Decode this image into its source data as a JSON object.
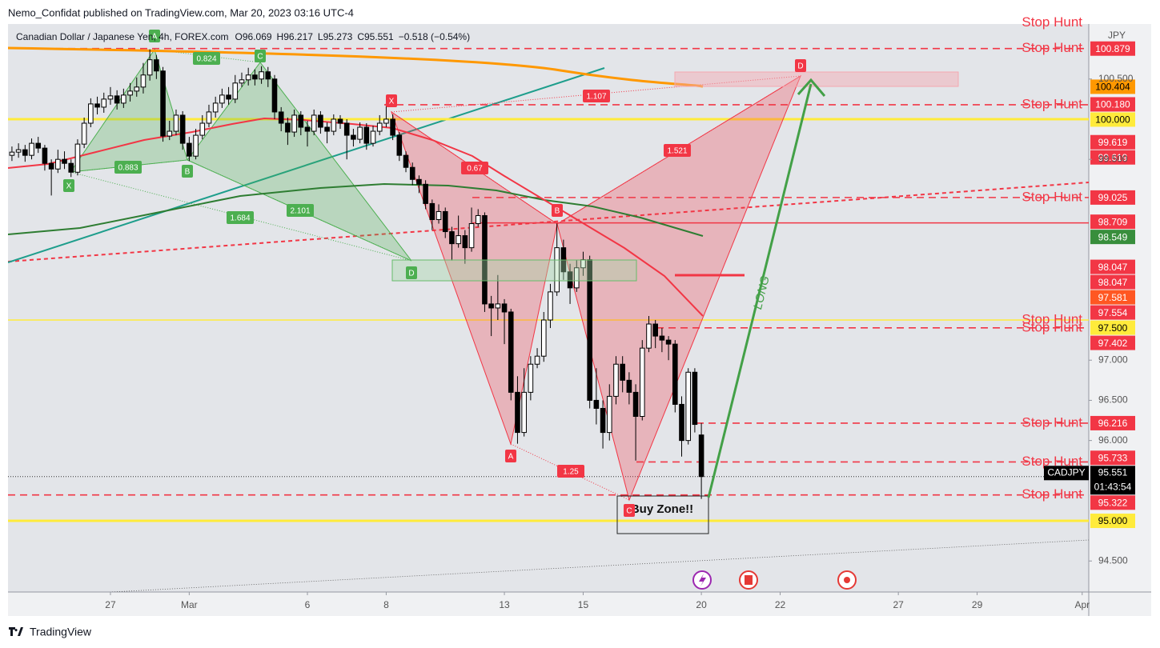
{
  "header": {
    "author_line": "Nemo_Confidat published on TradingView.com, Mar 20, 2023 03:16 UTC-4"
  },
  "footer": {
    "brand": "TradingView"
  },
  "chart_data": {
    "type": "candlestick",
    "title": "Canadian Dollar / Japanese Yen, 4h, FOREX.com",
    "ohlc_labels": [
      "O",
      "H",
      "L",
      "C"
    ],
    "change": "−0.518 (−0.54%)",
    "currency": "JPY",
    "symbol": "CADJPY",
    "countdown": "01:43:54",
    "up_color": "#ffffff",
    "down_color": "#000000",
    "wick_color": "#000000",
    "categories": [
      null,
      null,
      null,
      null,
      null,
      null,
      null,
      null,
      null,
      null,
      null,
      null,
      null,
      null,
      null,
      null,
      null,
      null,
      null,
      null,
      null,
      null,
      null,
      null,
      null,
      null,
      null,
      null,
      null,
      null,
      null,
      null,
      null,
      null,
      null,
      null,
      null,
      null,
      null,
      null,
      null,
      null,
      null,
      null,
      null,
      null,
      null,
      null,
      null,
      null,
      null,
      null,
      null,
      null,
      null,
      null,
      null,
      null,
      null,
      null,
      null,
      null,
      null,
      null,
      null,
      null,
      null,
      null,
      null,
      null,
      null,
      null,
      null,
      null,
      null,
      null,
      null,
      null,
      null,
      null,
      null,
      null,
      null,
      null,
      null,
      null,
      null,
      null,
      null,
      null,
      null,
      null,
      null,
      null,
      null,
      null,
      null,
      null,
      null,
      null,
      null,
      null,
      null,
      null,
      null,
      null
    ],
    "open": [
      99.55,
      99.59,
      99.62,
      99.55,
      99.7,
      99.64,
      99.45,
      99.38,
      99.5,
      99.45,
      99.34,
      99.69,
      99.95,
      100.19,
      100.15,
      100.25,
      100.29,
      100.2,
      100.3,
      100.35,
      100.4,
      100.55,
      100.74,
      100.6,
      99.79,
      99.85,
      100.05,
      99.7,
      99.54,
      99.8,
      99.95,
      100.09,
      100.2,
      100.3,
      100.25,
      100.45,
      100.49,
      100.55,
      100.5,
      100.59,
      100.5,
      100.09,
      99.95,
      99.84,
      100.05,
      99.9,
      99.85,
      100.05,
      99.9,
      99.85,
      100.0,
      99.95,
      99.8,
      99.75,
      99.9,
      99.7,
      99.85,
      99.95,
      100.0,
      99.8,
      99.55,
      99.4,
      99.25,
      99.19,
      98.95,
      98.75,
      98.85,
      98.6,
      98.45,
      98.55,
      98.4,
      98.7,
      98.8,
      97.7,
      97.65,
      97.7,
      97.6,
      96.6,
      96.1,
      96.6,
      96.95,
      97.05,
      97.5,
      97.85,
      98.4,
      98.1,
      97.9,
      98.15,
      98.25,
      96.5,
      96.4,
      96.1,
      96.55,
      96.95,
      96.75,
      96.6,
      96.3,
      97.15,
      97.45,
      97.3,
      97.25,
      97.2,
      96.45,
      96.0,
      96.85,
      96.069
    ],
    "high": [
      99.66,
      99.7,
      99.68,
      99.76,
      99.78,
      99.68,
      99.5,
      99.62,
      99.6,
      99.5,
      99.75,
      100.02,
      100.26,
      100.28,
      100.33,
      100.4,
      100.36,
      100.38,
      100.45,
      100.52,
      100.7,
      100.87,
      100.8,
      100.65,
      99.98,
      100.12,
      100.1,
      99.78,
      99.88,
      100.05,
      100.18,
      100.28,
      100.38,
      100.4,
      100.55,
      100.58,
      100.64,
      100.62,
      100.66,
      100.65,
      100.55,
      100.15,
      100.02,
      100.12,
      100.1,
      99.98,
      100.12,
      100.1,
      99.96,
      100.06,
      100.05,
      100.0,
      99.88,
      99.96,
      99.95,
      99.92,
      100.05,
      100.2,
      100.06,
      99.84,
      99.6,
      99.46,
      99.3,
      99.24,
      99.0,
      98.94,
      98.9,
      98.66,
      98.8,
      98.62,
      98.9,
      98.88,
      98.84,
      97.8,
      98.06,
      97.76,
      97.64,
      96.8,
      96.9,
      97.05,
      97.15,
      97.6,
      97.95,
      98.7,
      98.5,
      98.2,
      98.25,
      98.35,
      98.3,
      96.9,
      96.5,
      96.7,
      97.05,
      97.05,
      96.85,
      96.7,
      97.25,
      97.55,
      97.5,
      97.4,
      97.3,
      97.25,
      96.55,
      96.9,
      96.9,
      96.217
    ],
    "low": [
      99.48,
      99.52,
      99.47,
      99.5,
      99.58,
      99.36,
      99.05,
      99.33,
      99.38,
      99.28,
      99.3,
      99.64,
      99.9,
      100.06,
      100.08,
      100.18,
      100.12,
      100.14,
      100.22,
      100.28,
      100.32,
      100.48,
      100.5,
      99.72,
      99.74,
      99.8,
      99.62,
      99.48,
      99.5,
      99.75,
      99.9,
      100.02,
      100.14,
      100.18,
      100.2,
      100.4,
      100.42,
      100.42,
      100.44,
      100.4,
      100.0,
      99.85,
      99.68,
      99.78,
      99.8,
      99.66,
      99.8,
      99.82,
      99.7,
      99.8,
      99.88,
      99.5,
      99.66,
      99.7,
      99.62,
      99.66,
      99.8,
      99.9,
      99.74,
      99.48,
      99.34,
      99.18,
      99.08,
      98.88,
      98.62,
      98.7,
      98.52,
      98.24,
      98.4,
      98.2,
      98.35,
      98.66,
      97.6,
      97.3,
      97.5,
      97.2,
      96.5,
      95.96,
      96.05,
      96.5,
      96.9,
      96.98,
      97.4,
      97.8,
      98.0,
      97.7,
      97.85,
      98.05,
      96.4,
      96.2,
      95.9,
      96.0,
      96.45,
      96.6,
      96.45,
      95.75,
      96.25,
      97.1,
      97.15,
      97.1,
      97.0,
      96.35,
      95.8,
      95.95,
      96.1,
      95.273
    ],
    "close": [
      99.59,
      99.62,
      99.55,
      99.7,
      99.64,
      99.45,
      99.38,
      99.5,
      99.45,
      99.34,
      99.69,
      99.95,
      100.19,
      100.15,
      100.25,
      100.29,
      100.2,
      100.3,
      100.35,
      100.4,
      100.55,
      100.74,
      100.6,
      99.79,
      99.85,
      100.05,
      99.7,
      99.54,
      99.8,
      99.95,
      100.09,
      100.2,
      100.3,
      100.25,
      100.45,
      100.49,
      100.55,
      100.5,
      100.59,
      100.5,
      100.09,
      99.95,
      99.84,
      100.05,
      99.9,
      99.85,
      100.05,
      99.9,
      99.85,
      100.0,
      99.95,
      99.8,
      99.75,
      99.9,
      99.7,
      99.85,
      99.95,
      100.0,
      99.8,
      99.55,
      99.4,
      99.25,
      99.19,
      98.95,
      98.75,
      98.85,
      98.6,
      98.45,
      98.55,
      98.4,
      98.7,
      98.8,
      97.7,
      97.65,
      97.7,
      97.6,
      96.6,
      96.1,
      96.6,
      96.95,
      97.05,
      97.5,
      97.85,
      98.4,
      98.1,
      97.9,
      98.15,
      98.25,
      96.5,
      96.4,
      96.1,
      96.55,
      96.95,
      96.75,
      96.6,
      96.3,
      97.15,
      97.45,
      97.3,
      97.25,
      97.2,
      96.45,
      96.0,
      96.85,
      96.2,
      95.551
    ],
    "xlim": [
      -0.6,
      164
    ],
    "xticks": [
      {
        "value": 15,
        "label": "27"
      },
      {
        "value": 27,
        "label": "Mar"
      },
      {
        "value": 45,
        "label": "6"
      },
      {
        "value": 57,
        "label": "8"
      },
      {
        "value": 75,
        "label": "13"
      },
      {
        "value": 87,
        "label": "15"
      },
      {
        "value": 105,
        "label": "20"
      },
      {
        "value": 117,
        "label": "22"
      },
      {
        "value": 135,
        "label": "27"
      },
      {
        "value": 147,
        "label": "29"
      },
      {
        "value": 163,
        "label": "Apr"
      }
    ],
    "ylim": [
      94.114,
      101.185
    ],
    "yticks": [
      {
        "value": 94.5,
        "label": "94.500"
      },
      {
        "value": 96,
        "label": "96.000"
      },
      {
        "value": 96.5,
        "label": "96.500"
      },
      {
        "value": 97,
        "label": "97.000"
      },
      {
        "value": 99.5,
        "label": "99.500"
      },
      {
        "value": 100.5,
        "label": "100.500"
      }
    ],
    "levels": [
      {
        "value": 101.2,
        "stop_hunt": "Stop Hunt"
      },
      {
        "value": 100.879,
        "label": "100.879",
        "color": "#f23645",
        "text_color": "#ffffff",
        "line": "dashed",
        "stop_hunt": "Stop Hunt"
      },
      {
        "value": 100.404,
        "label": "100.404",
        "color": "#ff9800",
        "text_color": "#000000"
      },
      {
        "value": 100.18,
        "label": "100.180",
        "color": "#f23645",
        "text_color": "#ffffff",
        "line": "dashed",
        "stop_hunt": "Stop Hunt"
      },
      {
        "value": 100,
        "label": "100.000",
        "color": "#ffeb3b",
        "text_color": "#000000",
        "line": "solid"
      },
      {
        "value": 99.619,
        "label": "99.619",
        "color": "#f23645",
        "text_color": "#ffffff"
      },
      {
        "value": 99.619,
        "label": "99.619",
        "color": "#f23645",
        "text_color": "#ffffff"
      },
      {
        "value": 99.025,
        "label": "99.025",
        "color": "#f23645",
        "text_color": "#ffffff",
        "line": "dashed",
        "stop_hunt": "Stop Hunt"
      },
      {
        "value": 98.709,
        "label": "98.709",
        "color": "#f23645",
        "text_color": "#ffffff",
        "line": "solid"
      },
      {
        "value": 98.549,
        "label": "98.549",
        "color": "#388e3c",
        "text_color": "#ffffff"
      },
      {
        "value": 98.047,
        "label": "98.047",
        "color": "#f23645",
        "text_color": "#ffffff"
      },
      {
        "value": 98.047,
        "label": "98.047",
        "color": "#f23645",
        "text_color": "#ffffff"
      },
      {
        "value": 97.581,
        "label": "97.581",
        "color": "#ff5722",
        "text_color": "#ffffff"
      },
      {
        "value": 97.554,
        "label": "97.554",
        "color": "#f23645",
        "text_color": "#ffffff"
      },
      {
        "value": 97.5,
        "label": "97.500",
        "color": "#ffeb3b",
        "text_color": "#000000",
        "line": "solid",
        "stop_hunt": "Stop Hunt"
      },
      {
        "value": 97.402,
        "label": "97.402",
        "color": "#f23645",
        "text_color": "#ffffff",
        "line": "dashed",
        "stop_hunt": "Stop Hunt"
      },
      {
        "value": 96.216,
        "label": "96.216",
        "color": "#f23645",
        "text_color": "#ffffff",
        "line": "dashed",
        "stop_hunt": "Stop Hunt"
      },
      {
        "value": 95.733,
        "label": "95.733",
        "color": "#f23645",
        "text_color": "#ffffff",
        "line": "dashed",
        "stop_hunt": "Stop Hunt"
      },
      {
        "value": 95.322,
        "label": "95.322",
        "color": "#f23645",
        "text_color": "#ffffff",
        "line": "dashed",
        "stop_hunt": "Stop Hunt"
      },
      {
        "value": 95,
        "label": "95.000",
        "color": "#ffeb3b",
        "text_color": "#000000",
        "line": "solid"
      }
    ],
    "patterns": [
      {
        "color": "#4caf50",
        "labels": [
          "X",
          "A",
          "B",
          "C",
          "D"
        ],
        "ratios": [
          0.824,
          0.883,
          1.684,
          2.101
        ]
      },
      {
        "color": "#f23645",
        "labels": [
          "X",
          "A",
          "B",
          "C",
          "D"
        ],
        "ratios": [
          0.67,
          1.107,
          1.521,
          1.25
        ]
      }
    ],
    "annotations": {
      "buy_zone": "Buy Zone!!",
      "long": "LONG"
    }
  }
}
